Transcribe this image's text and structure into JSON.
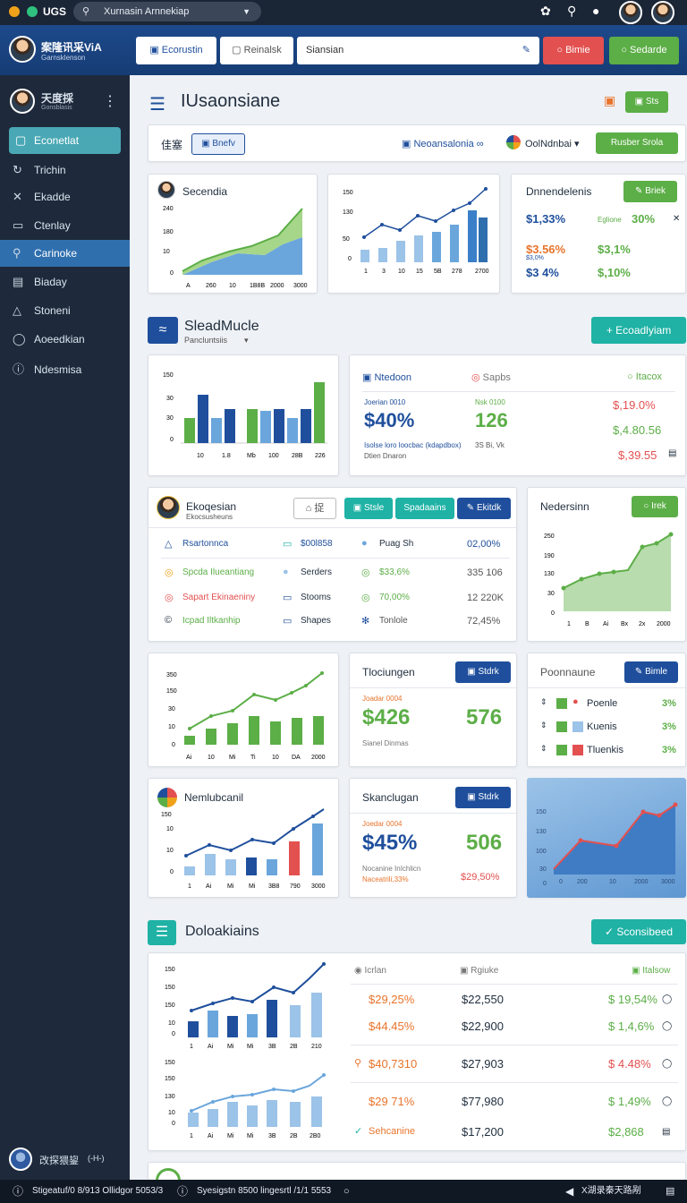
{
  "topbar": {
    "app_label": "UGS",
    "search_text": "Xurnasin Arnnekiap"
  },
  "header": {
    "user_title": "案隆讯采ViA",
    "user_sub": "Garnsklenson",
    "tab1": "Ecorustin",
    "tab2": "Reinalsk",
    "search_value": "Siansian",
    "btn_red": "Bimie",
    "btn_green": "Sedarde"
  },
  "sidebar": {
    "profile_name": "天度採",
    "profile_sub": "Gonsblasis",
    "items": [
      "Econetlat",
      "Trichin",
      "Ekadde",
      "Ctenlay",
      "Carinoke",
      "Biaday",
      "Stoneni",
      "Aoeedkian",
      "Ndesmisa"
    ],
    "bottom_name": "改探猥鋆",
    "bottom_tag": "(-H-)"
  },
  "page": {
    "title": "IUsaonsiane",
    "top_btn": "Sts",
    "filter_left": "佳塞",
    "filter_btn": "Bnefv",
    "filter_mid": "Neoansalonia",
    "filter_right": "OolNdnbai",
    "filter_btn2": "Rusber Srola"
  },
  "row1": {
    "c1_title": "Secendia",
    "c1_yticks": [
      "240",
      "180",
      "10",
      "0"
    ],
    "c1_xticks": [
      "A",
      "260",
      "10",
      "1B8B",
      "2000",
      "3000"
    ],
    "c2_yticks": [
      "150",
      "130",
      "50",
      "0"
    ],
    "c2_xticks": [
      "1",
      "3",
      "10",
      "15",
      "5B",
      "278",
      "2700"
    ],
    "c3_title": "Dnnendelenis",
    "c3_btn": "Briek",
    "c3_rows": [
      {
        "a": "$1,33%",
        "b_label": "Eglione",
        "b": "30%"
      },
      {
        "a": "$3.56%",
        "b": "$3,1%"
      },
      {
        "a": "$3 4%",
        "b": "$,10%"
      }
    ],
    "c3_a_note": "$3,0%"
  },
  "section1": {
    "title": "SleadMucle",
    "sub": "Pancluntsiis",
    "btn": "Ecoadlyiam"
  },
  "row2": {
    "c1_yticks": [
      "150",
      "30",
      "30",
      "0"
    ],
    "c1_xticks": [
      "10",
      "1.8",
      "Mb",
      "100",
      "28B",
      "226"
    ],
    "stat_h1": "Ntedoon",
    "stat_h2": "Sapbs",
    "stat_h3": "Itacox",
    "stat_l1": "Joerian 0010",
    "stat_v1": "$40%",
    "stat_l2": "Nsk 0100",
    "stat_v2": "126",
    "stat_note1": "Isolse loro loocbac (kdapdbox)",
    "stat_note2": "Dtien Dnaron",
    "stat_note3": "3S Bi, Vk",
    "stat_r": [
      "$,19.0%",
      "$,4.80.56",
      "$,39.55"
    ]
  },
  "row3": {
    "user_name": "Ekoqesian",
    "user_sub": "Ekocsusheuns",
    "btn_outline": "捉",
    "btn1": "Stsle",
    "btn2": "Spadaains",
    "btn3": "Ekitdk",
    "list": [
      {
        "a": "Rsartonnca",
        "b": "$00l858",
        "c": "Puag Sh",
        "d": "02,00%"
      },
      {
        "a": "Spcda Ilueantiang",
        "b": "Serders",
        "c": "$33,6%",
        "d": "335 106"
      },
      {
        "a": "Sapart Ekinaeniny",
        "b": "Stooms",
        "c": "70,00%",
        "d": "12 220K"
      },
      {
        "a": "Icpad Iltkanhip",
        "b": "Shapes",
        "c": "Tonlole",
        "d": "72,45%"
      }
    ],
    "right_title": "Nedersinn",
    "right_btn": "Irek",
    "right_yticks": [
      "250",
      "190",
      "130",
      "30",
      "0"
    ],
    "right_xticks": [
      "1",
      "B",
      "Ai",
      "Bx",
      "2x",
      "2000"
    ]
  },
  "row4": {
    "c1_yticks": [
      "350",
      "150",
      "30",
      "10",
      "0"
    ],
    "c1_xticks": [
      "Ai",
      "10",
      "Mi",
      "Ti",
      "10",
      "DA",
      "2000"
    ],
    "mid_title": "Tlociungen",
    "mid_btn": "Stdrk",
    "mid_label": "Joadar 0004",
    "mid_v1": "$426",
    "mid_v2": "576",
    "mid_note": "Sianel Dinmas",
    "right_title": "Poonnaune",
    "right_btn": "Bimle",
    "right_items": [
      {
        "name": "Poenle",
        "v": "3%"
      },
      {
        "name": "Kuenis",
        "v": "3%"
      },
      {
        "name": "Tluenkis",
        "v": "3%"
      }
    ]
  },
  "row5": {
    "c1_title": "Nemlubcanil",
    "c1_yticks": [
      "150",
      "10",
      "10",
      "0"
    ],
    "c1_xticks": [
      "1",
      "Ai",
      "Mi",
      "Mi",
      "3B8",
      "790",
      "3000"
    ],
    "mid_title": "Skanclugan",
    "mid_btn": "Stdrk",
    "mid_label": "Joedar 0004",
    "mid_v1": "$45%",
    "mid_v2": "506",
    "mid_note": "Nocanine InIchlicn",
    "mid_note2": "Naceatrili,33%",
    "mid_red": "$29,50%",
    "right_yticks": [
      "150",
      "130",
      "100",
      "30",
      "0"
    ],
    "right_xticks": [
      "0",
      "200",
      "10",
      "2000",
      "3000"
    ]
  },
  "section2": {
    "title": "Doloakiains",
    "btn": "Sconsibeed"
  },
  "row6": {
    "chartA_yticks": [
      "150",
      "150",
      "150",
      "10",
      "0"
    ],
    "chartA_xticks": [
      "1",
      "Ai",
      "Mi",
      "Mi",
      "3B",
      "2B",
      "210"
    ],
    "chartB_yticks": [
      "150",
      "150",
      "130",
      "10",
      "0"
    ],
    "chartB_xticks": [
      "1",
      "Ai",
      "Mi",
      "Mi",
      "3B",
      "2B",
      "2B0"
    ],
    "th1": "Icrlan",
    "th2": "Rgiuke",
    "th3": "Italsow",
    "rows": [
      {
        "a": "$29,25%",
        "b": "$22,550",
        "c": "$ 19,54%"
      },
      {
        "a": "$44.45%",
        "b": "$22,900",
        "c": "$ 1,4,6%"
      },
      {
        "a": "$40,7310",
        "b": "$27,903",
        "c": "$ 4.48%"
      },
      {
        "a": "$29 71%",
        "b": "$77,980",
        "c": "$ 1,49%"
      },
      {
        "a": "Sehcanine",
        "b": "$17,200",
        "c": "$2,868"
      }
    ]
  },
  "bottombar": {
    "left": "Stigeatuf/0 8/913 Ollidgor 5053/3",
    "mid": "Syesigstn 8500 lingesrtl /1/1 5553",
    "right": "X湖录秦天路剐"
  },
  "colors": {
    "accent_green": "#5cae47",
    "accent_teal": "#1fb2a5",
    "accent_blue": "#1f4f9c",
    "red": "#e35050",
    "orange": "#e8742c"
  }
}
